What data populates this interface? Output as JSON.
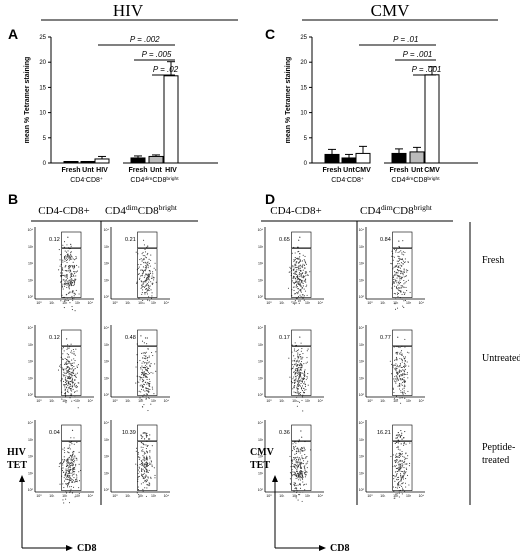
{
  "chart_data": [
    {
      "type": "bar",
      "panel_letter": "A",
      "title": "HIV",
      "ylabel": "mean % Tetramer staining",
      "ylim": [
        0,
        25
      ],
      "yticks": [
        "0",
        "5",
        "10",
        "15",
        "20",
        "25"
      ],
      "categories": [
        "Fresh",
        "Unt",
        "HIV",
        "Fresh",
        "Unt",
        "HIV"
      ],
      "group_labels": [
        {
          "main": "CD4",
          "sup": "-",
          "main2": "CD8",
          "sup2": "+"
        },
        {
          "main": "CD4",
          "sup": "dim",
          "main2": "CD8",
          "sup2": "bright"
        }
      ],
      "values": [
        0.1,
        0.1,
        0.8,
        1.0,
        1.3,
        17.3
      ],
      "errors": [
        0.1,
        0.1,
        0.5,
        0.4,
        0.3,
        2.8
      ],
      "fills": [
        "#000000",
        "#000000",
        "#ffffff",
        "#000000",
        "#bbbbbb",
        "#ffffff"
      ],
      "pvalues": [
        {
          "label": "P = .002",
          "from": 2,
          "to": 5
        },
        {
          "label": "P = .005",
          "from": 3,
          "to": 5
        },
        {
          "label": "P = .02",
          "from": 4,
          "to": 5
        }
      ]
    },
    {
      "type": "bar",
      "panel_letter": "C",
      "title": "CMV",
      "ylabel": "mean % Tetramer staining",
      "ylim": [
        0,
        25
      ],
      "yticks": [
        "0",
        "5",
        "10",
        "15",
        "20",
        "25"
      ],
      "categories": [
        "Fresh",
        "Unt",
        "CMV",
        "Fresh",
        "Unt",
        "CMV"
      ],
      "group_labels": [
        {
          "main": "CD4",
          "sup": "-",
          "main2": "CD8",
          "sup2": "+"
        },
        {
          "main": "CD4",
          "sup": "dim",
          "main2": "CD8",
          "sup2": "bright"
        }
      ],
      "values": [
        1.7,
        1.0,
        1.9,
        1.9,
        2.2,
        17.5
      ],
      "errors": [
        1.0,
        0.7,
        1.4,
        0.9,
        0.9,
        1.6
      ],
      "fills": [
        "#000000",
        "#000000",
        "#ffffff",
        "#000000",
        "#bbbbbb",
        "#ffffff"
      ],
      "pvalues": [
        {
          "label": "P = .01",
          "from": 2,
          "to": 5
        },
        {
          "label": "P = .001",
          "from": 3,
          "to": 5
        },
        {
          "label": "P = .001",
          "from": 4,
          "to": 5
        }
      ]
    }
  ],
  "flow": {
    "panels": [
      {
        "letter": "B",
        "yaxis_label": [
          "HIV",
          "TET"
        ]
      },
      {
        "letter": "D",
        "yaxis_label": [
          "CMV",
          "TET"
        ]
      }
    ],
    "col_headers": [
      {
        "main": "CD4-CD8+"
      },
      {
        "main": "CD4",
        "sup": "dim",
        "main2": "CD8",
        "sup2": "bright"
      }
    ],
    "row_labels": [
      [
        "Fresh"
      ],
      [
        "Untreated"
      ],
      [
        "Peptide-",
        "treated"
      ]
    ],
    "xaxis_label": "CD8",
    "tick_labels": [
      "10⁰",
      "10¹",
      "10²",
      "10³",
      "10⁴"
    ],
    "gate_values": {
      "B": [
        [
          "0.12",
          "0.21"
        ],
        [
          "0.12",
          "0.48"
        ],
        [
          "0.04",
          "10.39"
        ]
      ],
      "D": [
        [
          "0.65",
          "0.84"
        ],
        [
          "0.17",
          "0.77"
        ],
        [
          "0.36",
          "16.21"
        ]
      ]
    }
  }
}
